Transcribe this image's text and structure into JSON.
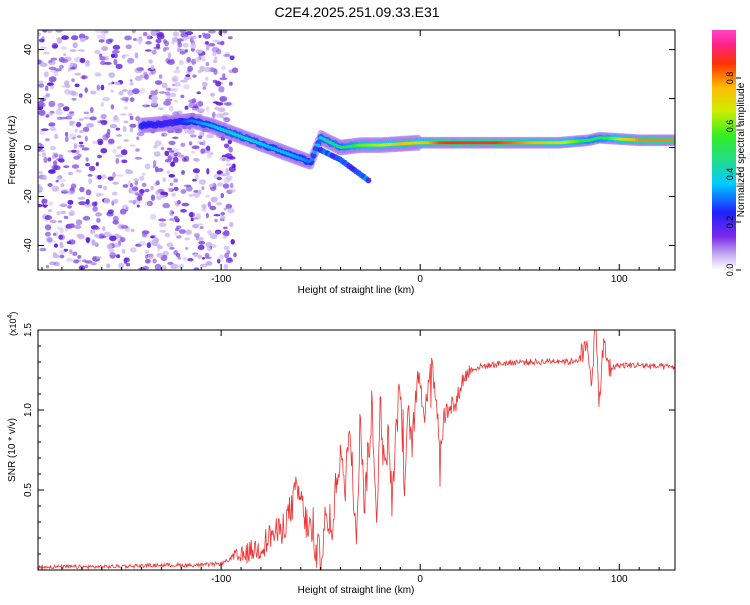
{
  "figure_title": "C2E4.2025.251.09.33.E31",
  "chart_data": [
    {
      "type": "heatmap",
      "title": "C2E4.2025.251.09.33.E31",
      "xlabel": "Height of straight line (km)",
      "ylabel": "Frequency (Hz)",
      "xlim": [
        -192,
        128
      ],
      "ylim": [
        -50,
        48
      ],
      "x_ticks": [
        -100,
        0,
        100
      ],
      "x_tick_labels": [
        "-100",
        "0",
        "100"
      ],
      "y_ticks": [
        -40,
        -20,
        0,
        20,
        40
      ],
      "y_tick_labels": [
        "-40",
        "-20",
        "0",
        "20",
        "40"
      ],
      "noise_region_x": [
        -192,
        -100
      ],
      "ridge": {
        "name": "spectral ridge (dominant frequency)",
        "x": [
          -140,
          -125,
          -115,
          -105,
          -95,
          -85,
          -75,
          -65,
          -55,
          -50,
          -45,
          -40,
          -30,
          -20,
          -10,
          0,
          10,
          30,
          50,
          70,
          85,
          90,
          110,
          128
        ],
        "y": [
          9,
          10,
          11,
          9,
          6,
          3,
          0,
          -3,
          -6,
          4,
          2,
          0,
          1,
          1,
          1.5,
          2,
          2,
          2,
          2,
          2,
          3,
          4,
          3,
          3
        ],
        "amplitude": [
          0.25,
          0.2,
          0.3,
          0.35,
          0.4,
          0.4,
          0.35,
          0.35,
          0.3,
          0.4,
          0.45,
          0.45,
          0.6,
          0.65,
          0.75,
          0.7,
          0.85,
          0.9,
          0.8,
          0.7,
          0.5,
          0.5,
          0.8,
          0.8
        ]
      },
      "secondary_branch": {
        "x": [
          -50,
          -45,
          -40,
          -35,
          -30,
          -25
        ],
        "y": [
          -1,
          -3,
          -5,
          -8,
          -11,
          -14
        ]
      }
    },
    {
      "type": "colorbar",
      "label": "Normalized spectral amplitude",
      "range": [
        0,
        1
      ],
      "ticks": [
        0.0,
        0.2,
        0.4,
        0.6,
        0.8
      ],
      "tick_labels": [
        "0.0",
        "0.2",
        "0.4",
        "0.6",
        "0.8"
      ]
    },
    {
      "type": "line",
      "xlabel": "Height of straight line (km)",
      "ylabel": "SNR (10 * v/v)",
      "scale_label": "(x10",
      "scale_exponent": "4",
      "scale_suffix": ")",
      "xlim": [
        -192,
        128
      ],
      "ylim": [
        0,
        1.5
      ],
      "x_ticks": [
        -100,
        0,
        100
      ],
      "x_tick_labels": [
        "-100",
        "0",
        "100"
      ],
      "y_ticks": [
        0.5,
        1.0,
        1.5
      ],
      "y_tick_labels": [
        "0.5",
        "1.0",
        "1.5"
      ],
      "color": "#ee3333",
      "series": [
        {
          "name": "SNR",
          "x": [
            -192,
            -160,
            -130,
            -110,
            -100,
            -95,
            -90,
            -85,
            -80,
            -75,
            -70,
            -65,
            -62,
            -60,
            -58,
            -55,
            -52,
            -50,
            -48,
            -45,
            -42,
            -40,
            -38,
            -36,
            -34,
            -32,
            -30,
            -28,
            -26,
            -24,
            -22,
            -20,
            -18,
            -16,
            -14,
            -12,
            -10,
            -8,
            -6,
            -4,
            -2,
            0,
            2,
            4,
            6,
            8,
            10,
            12,
            15,
            18,
            20,
            22,
            25,
            30,
            35,
            40,
            50,
            60,
            70,
            75,
            80,
            84,
            86,
            88,
            90,
            92,
            95,
            100,
            110,
            120,
            128
          ],
          "y": [
            0.02,
            0.02,
            0.03,
            0.03,
            0.04,
            0.07,
            0.08,
            0.12,
            0.14,
            0.22,
            0.24,
            0.38,
            0.5,
            0.44,
            0.32,
            0.24,
            0.12,
            0.08,
            0.3,
            0.2,
            0.55,
            0.78,
            0.42,
            0.92,
            0.6,
            0.25,
            0.98,
            0.4,
            0.75,
            0.95,
            0.3,
            1.05,
            0.6,
            0.85,
            0.4,
            0.9,
            1.15,
            0.55,
            0.95,
            0.8,
            1.1,
            1.22,
            0.95,
            1.18,
            1.25,
            1.1,
            0.75,
            0.95,
            1.05,
            1.02,
            1.15,
            1.2,
            1.25,
            1.27,
            1.28,
            1.29,
            1.3,
            1.3,
            1.31,
            1.3,
            1.32,
            1.38,
            1.22,
            1.5,
            1.05,
            1.4,
            1.26,
            1.28,
            1.28,
            1.27,
            1.27
          ]
        }
      ]
    }
  ]
}
